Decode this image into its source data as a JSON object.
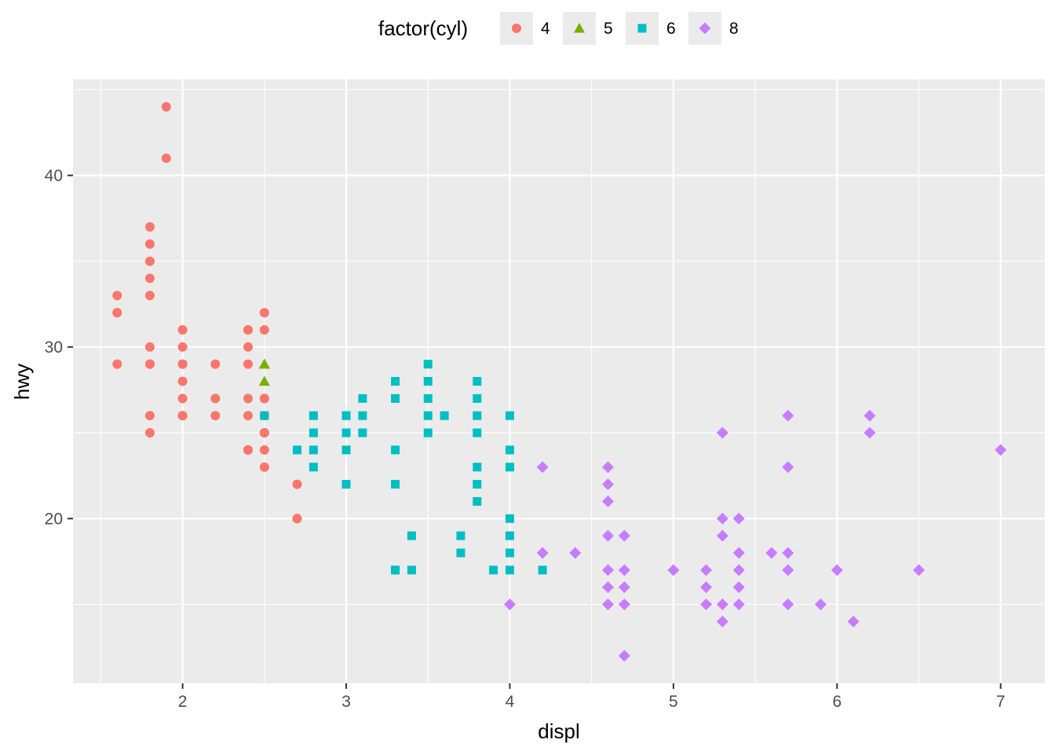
{
  "chart_data": {
    "type": "scatter",
    "xlabel": "displ",
    "ylabel": "hwy",
    "xlim": [
      1.33,
      7.27
    ],
    "ylim": [
      10.4,
      45.6
    ],
    "x_ticks": [
      2,
      3,
      4,
      5,
      6,
      7
    ],
    "y_ticks": [
      20,
      30,
      40
    ],
    "grid": true,
    "legend": {
      "title": "factor(cyl)",
      "position": "top"
    },
    "series": [
      {
        "name": "4",
        "shape": "circle",
        "color": "#F8766D",
        "points": [
          [
            1.8,
            29
          ],
          [
            1.8,
            29
          ],
          [
            2.0,
            31
          ],
          [
            2.0,
            30
          ],
          [
            1.8,
            26
          ],
          [
            1.8,
            25
          ],
          [
            2.0,
            28
          ],
          [
            2.0,
            26
          ],
          [
            2.0,
            29
          ],
          [
            2.0,
            26
          ],
          [
            2.0,
            27
          ],
          [
            2.4,
            30
          ],
          [
            2.4,
            27
          ],
          [
            2.2,
            26
          ],
          [
            2.2,
            29
          ],
          [
            2.4,
            31
          ],
          [
            2.4,
            24
          ],
          [
            2.5,
            25
          ],
          [
            2.5,
            26
          ],
          [
            2.4,
            26
          ],
          [
            2.4,
            24
          ],
          [
            1.8,
            37
          ],
          [
            1.8,
            36
          ],
          [
            1.8,
            35
          ],
          [
            1.8,
            34
          ],
          [
            1.6,
            33
          ],
          [
            1.6,
            32
          ],
          [
            1.6,
            29
          ],
          [
            1.9,
            44
          ],
          [
            1.9,
            41
          ],
          [
            2.5,
            32
          ],
          [
            2.5,
            31
          ],
          [
            2.5,
            23
          ],
          [
            2.5,
            27
          ],
          [
            2.7,
            20
          ],
          [
            2.7,
            22
          ],
          [
            2.4,
            29
          ],
          [
            2.5,
            24
          ],
          [
            2.2,
            27
          ],
          [
            1.8,
            30
          ],
          [
            1.8,
            33
          ],
          [
            2.0,
            26
          ],
          [
            2.5,
            27
          ],
          [
            1.6,
            32
          ],
          [
            2.7,
            20
          ],
          [
            2.4,
            31
          ],
          [
            2.0,
            29
          ],
          [
            1.8,
            29
          ],
          [
            2.5,
            25
          ]
        ]
      },
      {
        "name": "5",
        "shape": "triangle",
        "color": "#7CAE00",
        "points": [
          [
            2.5,
            29
          ],
          [
            2.5,
            29
          ],
          [
            2.5,
            28
          ],
          [
            2.5,
            29
          ]
        ]
      },
      {
        "name": "6",
        "shape": "square",
        "color": "#00BFC4",
        "points": [
          [
            2.8,
            26
          ],
          [
            2.8,
            25
          ],
          [
            3.1,
            25
          ],
          [
            3.1,
            27
          ],
          [
            3.1,
            26
          ],
          [
            2.8,
            24
          ],
          [
            2.8,
            23
          ],
          [
            3.0,
            26
          ],
          [
            3.0,
            25
          ],
          [
            3.0,
            24
          ],
          [
            3.0,
            22
          ],
          [
            3.3,
            22
          ],
          [
            3.3,
            17
          ],
          [
            3.3,
            24
          ],
          [
            3.3,
            28
          ],
          [
            3.3,
            27
          ],
          [
            3.4,
            19
          ],
          [
            3.4,
            17
          ],
          [
            3.5,
            29
          ],
          [
            3.5,
            28
          ],
          [
            3.5,
            27
          ],
          [
            3.5,
            26
          ],
          [
            3.5,
            25
          ],
          [
            3.6,
            26
          ],
          [
            3.7,
            19
          ],
          [
            3.7,
            18
          ],
          [
            3.8,
            28
          ],
          [
            3.8,
            27
          ],
          [
            3.8,
            26
          ],
          [
            3.8,
            25
          ],
          [
            3.8,
            23
          ],
          [
            3.8,
            22
          ],
          [
            3.8,
            21
          ],
          [
            3.9,
            17
          ],
          [
            4.0,
            26
          ],
          [
            4.0,
            24
          ],
          [
            4.0,
            23
          ],
          [
            4.0,
            20
          ],
          [
            4.0,
            19
          ],
          [
            4.0,
            18
          ],
          [
            4.0,
            17
          ],
          [
            4.2,
            17
          ],
          [
            2.7,
            24
          ],
          [
            2.5,
            26
          ],
          [
            3.3,
            17
          ],
          [
            3.0,
            26
          ]
        ]
      },
      {
        "name": "8",
        "shape": "diamond",
        "color": "#C77CFF",
        "points": [
          [
            4.0,
            15
          ],
          [
            4.2,
            23
          ],
          [
            4.2,
            18
          ],
          [
            4.4,
            18
          ],
          [
            4.6,
            23
          ],
          [
            4.6,
            22
          ],
          [
            4.6,
            21
          ],
          [
            4.6,
            19
          ],
          [
            4.6,
            17
          ],
          [
            4.6,
            16
          ],
          [
            4.6,
            15
          ],
          [
            4.7,
            19
          ],
          [
            4.7,
            17
          ],
          [
            4.7,
            16
          ],
          [
            4.7,
            15
          ],
          [
            4.7,
            12
          ],
          [
            5.0,
            17
          ],
          [
            5.2,
            17
          ],
          [
            5.2,
            16
          ],
          [
            5.2,
            15
          ],
          [
            5.3,
            25
          ],
          [
            5.3,
            20
          ],
          [
            5.3,
            19
          ],
          [
            5.3,
            15
          ],
          [
            5.3,
            14
          ],
          [
            5.4,
            20
          ],
          [
            5.4,
            18
          ],
          [
            5.4,
            17
          ],
          [
            5.4,
            16
          ],
          [
            5.4,
            15
          ],
          [
            5.6,
            18
          ],
          [
            5.7,
            26
          ],
          [
            5.7,
            23
          ],
          [
            5.7,
            18
          ],
          [
            5.7,
            17
          ],
          [
            5.7,
            15
          ],
          [
            5.9,
            15
          ],
          [
            6.0,
            17
          ],
          [
            6.1,
            14
          ],
          [
            6.2,
            26
          ],
          [
            6.2,
            25
          ],
          [
            6.5,
            17
          ],
          [
            7.0,
            24
          ]
        ]
      }
    ]
  }
}
